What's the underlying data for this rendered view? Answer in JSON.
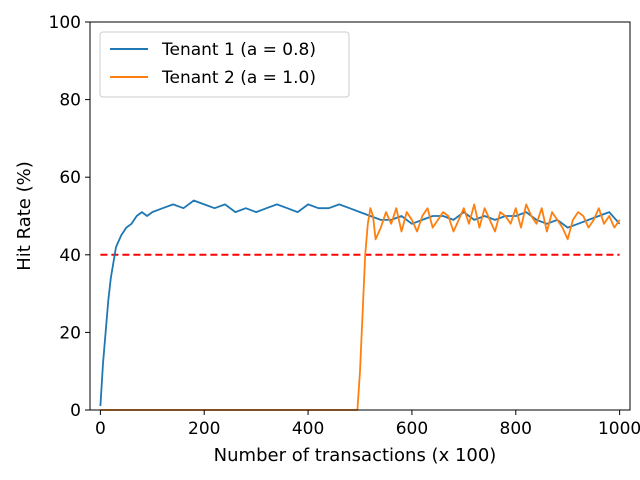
{
  "chart_data": {
    "type": "line",
    "title": "",
    "xlabel": "Number of transactions (x 100)",
    "ylabel": "Hit Rate (%)",
    "xlim": [
      -20,
      1020
    ],
    "ylim": [
      0,
      100
    ],
    "xticks": [
      0,
      200,
      400,
      600,
      800,
      1000
    ],
    "yticks": [
      0,
      20,
      40,
      60,
      80,
      100
    ],
    "grid": false,
    "legend_position": "top-left",
    "reference_line": {
      "y": 40,
      "color": "#ff0000",
      "style": "dashed",
      "x_range": [
        0,
        1000
      ]
    },
    "series": [
      {
        "name": "Tenant 1 (a = 0.8)",
        "color": "#1f77b4",
        "x": [
          0,
          5,
          10,
          15,
          20,
          25,
          30,
          40,
          50,
          60,
          70,
          80,
          90,
          100,
          120,
          140,
          160,
          180,
          200,
          220,
          240,
          260,
          280,
          300,
          320,
          340,
          360,
          380,
          400,
          420,
          440,
          460,
          480,
          500,
          520,
          540,
          560,
          580,
          600,
          620,
          640,
          660,
          680,
          700,
          720,
          740,
          760,
          780,
          800,
          820,
          840,
          860,
          880,
          900,
          920,
          940,
          960,
          980,
          1000
        ],
        "y": [
          1,
          12,
          20,
          28,
          34,
          38,
          42,
          45,
          47,
          48,
          50,
          51,
          50,
          51,
          52,
          53,
          52,
          54,
          53,
          52,
          53,
          51,
          52,
          51,
          52,
          53,
          52,
          51,
          53,
          52,
          52,
          53,
          52,
          51,
          50,
          49,
          49,
          50,
          48,
          49,
          50,
          50,
          49,
          51,
          49,
          50,
          49,
          50,
          50,
          51,
          49,
          48,
          49,
          47,
          48,
          49,
          50,
          51,
          48
        ]
      },
      {
        "name": "Tenant 2 (a = 1.0)",
        "color": "#ff7f0e",
        "x": [
          0,
          100,
          200,
          300,
          400,
          495,
          500,
          505,
          510,
          515,
          520,
          525,
          530,
          540,
          550,
          560,
          570,
          580,
          590,
          600,
          610,
          620,
          630,
          640,
          650,
          660,
          670,
          680,
          690,
          700,
          710,
          720,
          730,
          740,
          750,
          760,
          770,
          780,
          790,
          800,
          810,
          820,
          830,
          840,
          850,
          860,
          870,
          880,
          890,
          900,
          910,
          920,
          930,
          940,
          950,
          960,
          970,
          980,
          990,
          1000
        ],
        "y": [
          0,
          0,
          0,
          0,
          0,
          0,
          10,
          25,
          40,
          48,
          52,
          50,
          44,
          47,
          51,
          48,
          52,
          46,
          51,
          49,
          46,
          50,
          52,
          47,
          49,
          51,
          50,
          46,
          49,
          52,
          48,
          53,
          47,
          52,
          49,
          46,
          51,
          50,
          48,
          52,
          47,
          53,
          50,
          48,
          52,
          46,
          51,
          49,
          47,
          44,
          49,
          51,
          50,
          47,
          49,
          52,
          48,
          50,
          47,
          49
        ]
      }
    ]
  }
}
